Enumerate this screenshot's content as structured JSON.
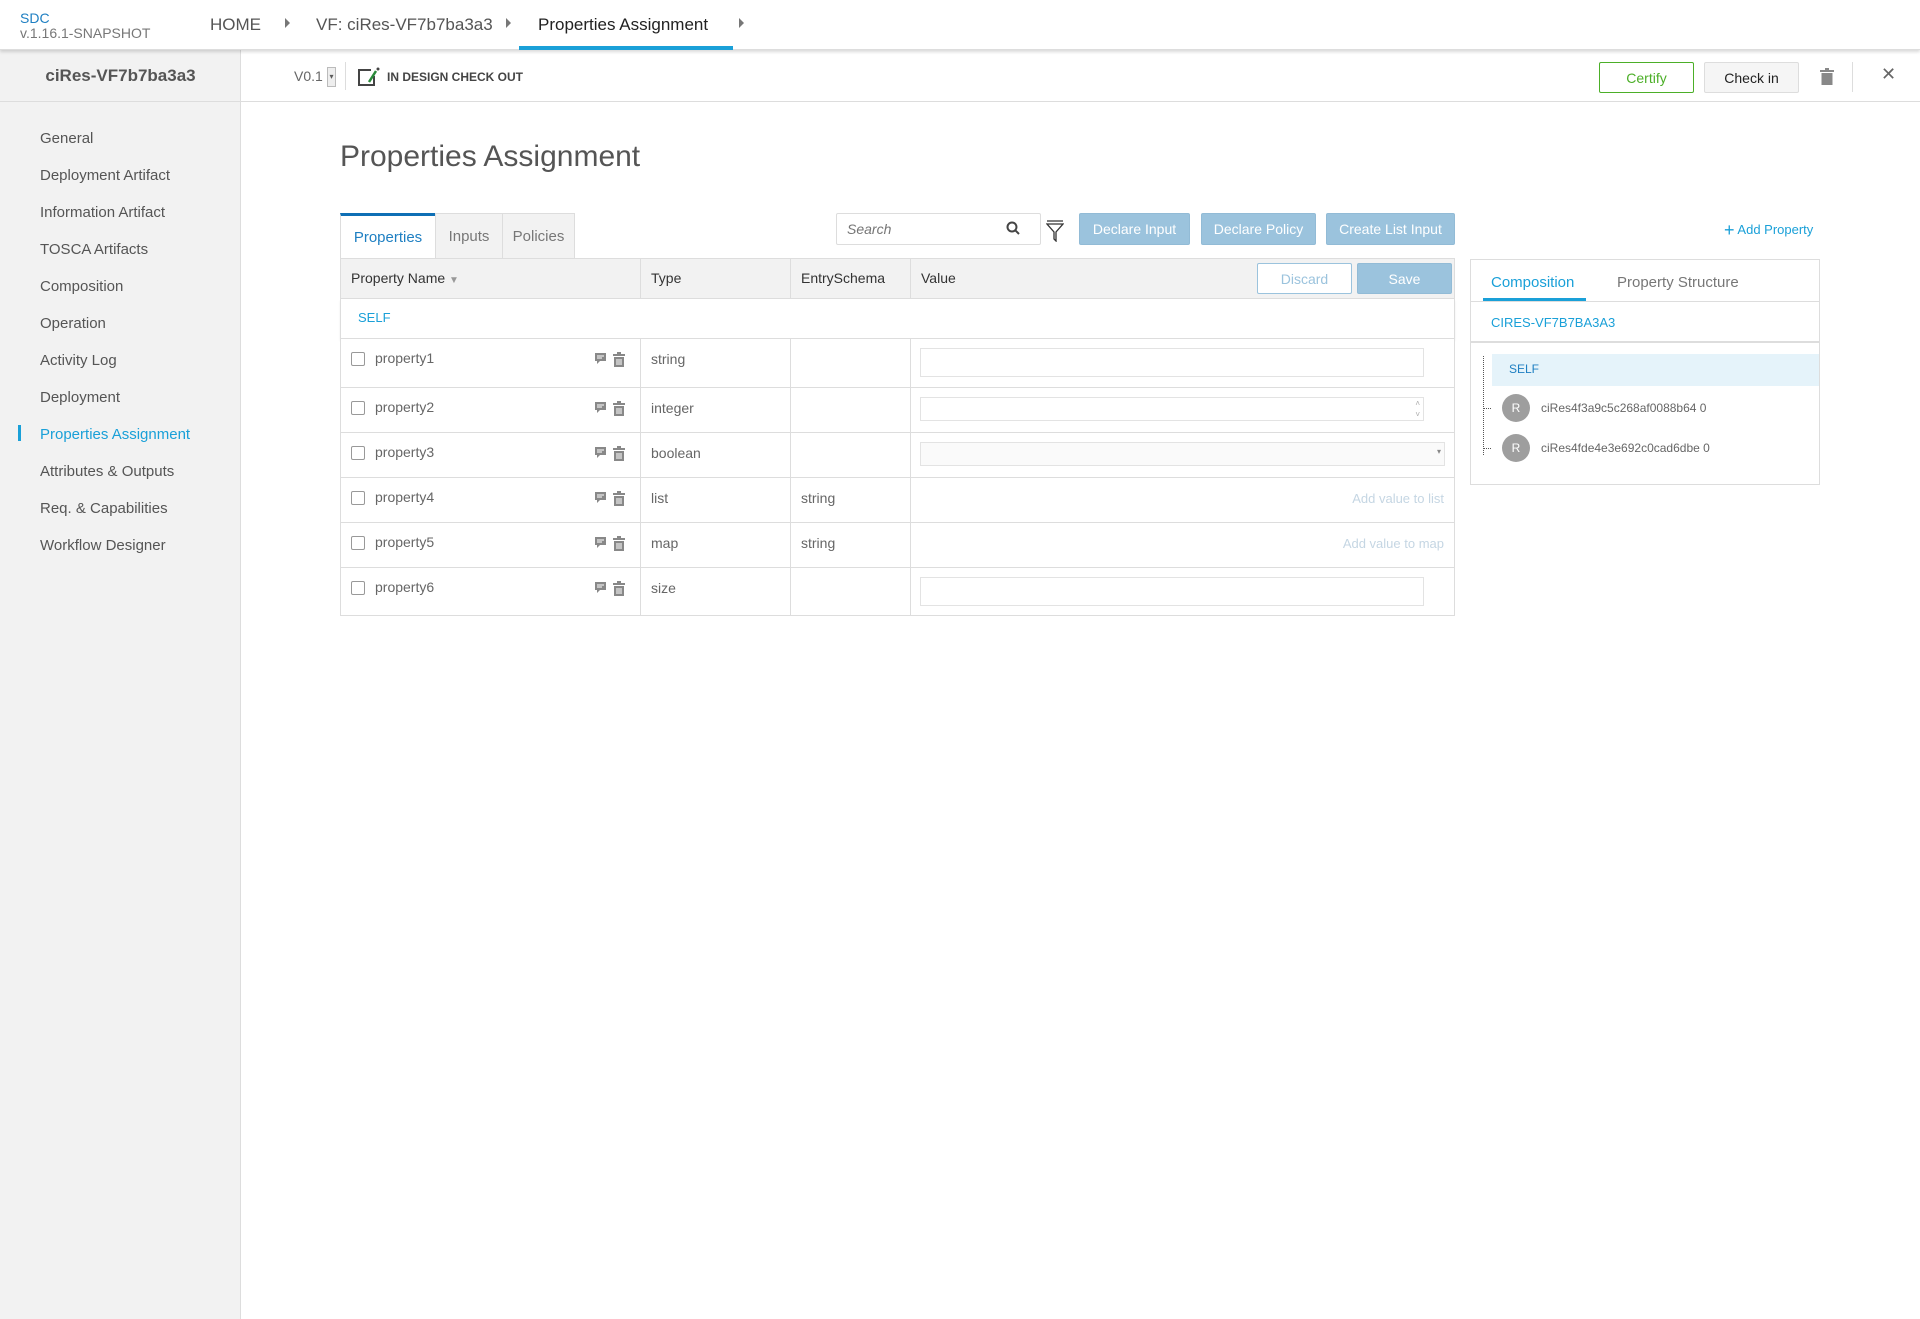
{
  "app": {
    "name": "SDC",
    "version": "v.1.16.1-SNAPSHOT"
  },
  "breadcrumb": [
    "HOME",
    "VF: ciRes-VF7b7ba3a3",
    "Properties Assignment"
  ],
  "sidebar": {
    "title": "ciRes-VF7b7ba3a3",
    "active_index": 8,
    "items": [
      {
        "label": "General"
      },
      {
        "label": "Deployment Artifact"
      },
      {
        "label": "Information Artifact"
      },
      {
        "label": "TOSCA Artifacts"
      },
      {
        "label": "Composition"
      },
      {
        "label": "Operation"
      },
      {
        "label": "Activity Log"
      },
      {
        "label": "Deployment"
      },
      {
        "label": "Properties Assignment"
      },
      {
        "label": "Attributes & Outputs"
      },
      {
        "label": "Req. & Capabilities"
      },
      {
        "label": "Workflow Designer"
      }
    ]
  },
  "subbar": {
    "version": "V0.1",
    "status": "IN DESIGN CHECK OUT",
    "certify": "Certify",
    "checkin": "Check in"
  },
  "page": {
    "title": "Properties Assignment"
  },
  "tabs": [
    {
      "label": "Properties"
    },
    {
      "label": "Inputs"
    },
    {
      "label": "Policies"
    }
  ],
  "toolbar": {
    "search_placeholder": "Search",
    "declare_input": "Declare Input",
    "declare_policy": "Declare Policy",
    "create_list_input": "Create List Input",
    "add_property": "Add Property"
  },
  "table": {
    "headers": {
      "name": "Property Name",
      "type": "Type",
      "entry": "EntrySchema",
      "value": "Value"
    },
    "discard": "Discard",
    "save": "Save",
    "group": "SELF",
    "rows": [
      {
        "name": "property1",
        "type": "string",
        "entry": "",
        "value": ""
      },
      {
        "name": "property2",
        "type": "integer",
        "entry": "",
        "value": ""
      },
      {
        "name": "property3",
        "type": "boolean",
        "entry": "",
        "value": ""
      },
      {
        "name": "property4",
        "type": "list",
        "entry": "string",
        "value": "Add value to list"
      },
      {
        "name": "property5",
        "type": "map",
        "entry": "string",
        "value": "Add value to map"
      },
      {
        "name": "property6",
        "type": "size",
        "entry": "",
        "value": ""
      }
    ]
  },
  "right_panel": {
    "tabs": [
      "Composition",
      "Property Structure"
    ],
    "root": "CIRES-VF7B7BA3A3",
    "self": "SELF",
    "instances": [
      {
        "badge": "R",
        "name": "ciRes4f3a9c5c268af0088b64 0"
      },
      {
        "badge": "R",
        "name": "ciRes4fde4e3e692c0cad6dbe 0"
      }
    ]
  },
  "colors": {
    "accent": "#1aa0d8",
    "certify": "#4caf28",
    "button_blue": "#9bc3dd"
  }
}
